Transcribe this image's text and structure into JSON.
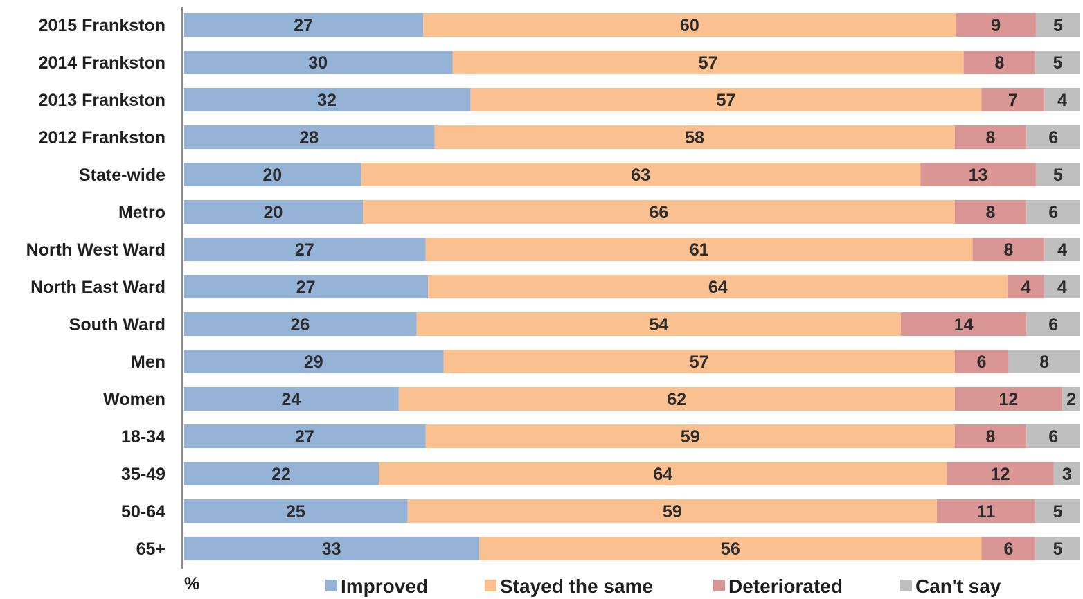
{
  "chart_data": {
    "type": "bar",
    "orientation": "horizontal",
    "stacked": true,
    "unit_label": "%",
    "categories": [
      "2015 Frankston",
      "2014 Frankston",
      "2013 Frankston",
      "2012 Frankston",
      "State-wide",
      "Metro",
      "North West Ward",
      "North East Ward",
      "South Ward",
      "Men",
      "Women",
      "18-34",
      "35-49",
      "50-64",
      "65+"
    ],
    "series": [
      {
        "name": "Improved",
        "color": "#95b3d7",
        "values": [
          27,
          30,
          32,
          28,
          20,
          20,
          27,
          27,
          26,
          29,
          24,
          27,
          22,
          25,
          33
        ]
      },
      {
        "name": "Stayed the same",
        "color": "#fac090",
        "values": [
          60,
          57,
          57,
          58,
          63,
          66,
          61,
          64,
          54,
          57,
          62,
          59,
          64,
          59,
          56
        ]
      },
      {
        "name": "Deteriorated",
        "color": "#d99694",
        "values": [
          9,
          8,
          7,
          8,
          13,
          8,
          8,
          4,
          14,
          6,
          12,
          8,
          12,
          11,
          6
        ]
      },
      {
        "name": "Can't say",
        "color": "#bfbfbf",
        "values": [
          5,
          5,
          4,
          6,
          5,
          6,
          4,
          4,
          6,
          8,
          2,
          6,
          3,
          5,
          5
        ]
      }
    ],
    "xlim": [
      0,
      100
    ],
    "grid": false,
    "legend_position": "bottom"
  }
}
